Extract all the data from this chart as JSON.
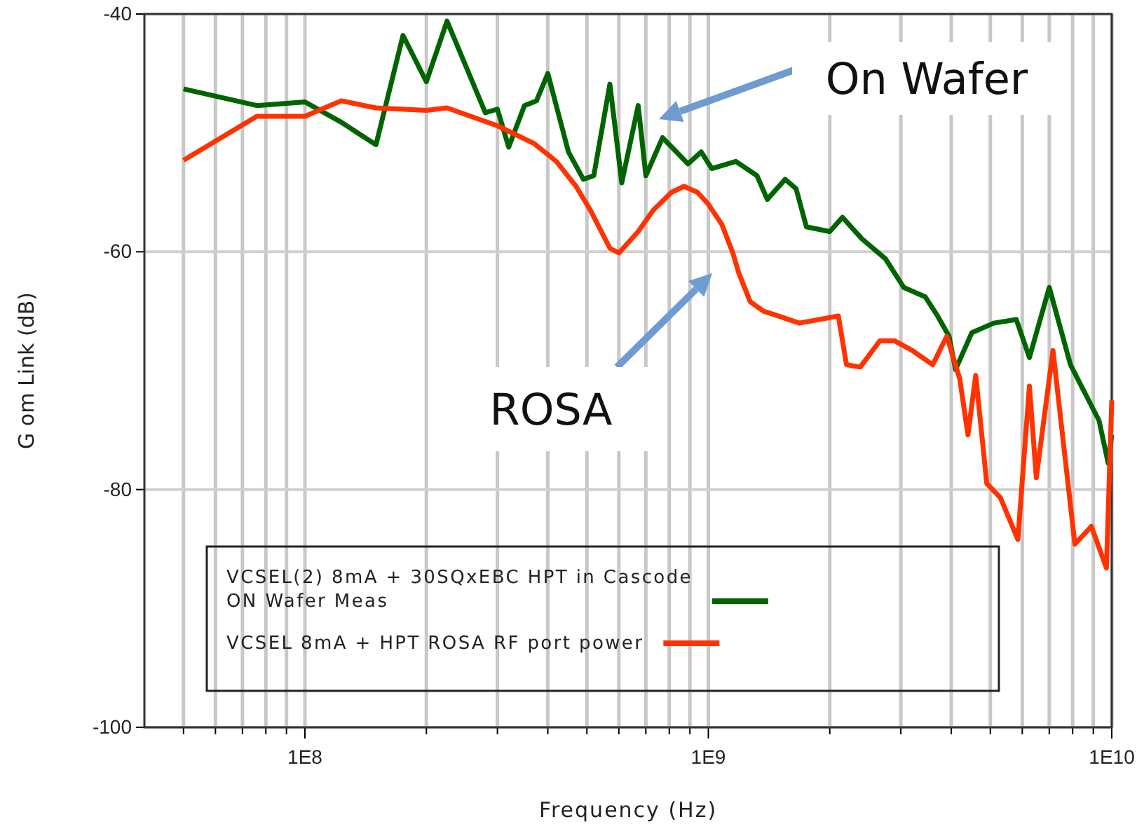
{
  "chart_data": {
    "type": "line",
    "xlabel": "Frequency (Hz)",
    "ylabel": "G om Link (dB)",
    "log": "x",
    "grid": true,
    "legend": "bottom",
    "line_style": "solid",
    "marker": "none",
    "xlim": [
      40000000,
      10000000000
    ],
    "ylim": [
      -100,
      -40
    ],
    "xticks": [
      {
        "value": 50000000,
        "label": null
      },
      {
        "value": 60000000,
        "label": null
      },
      {
        "value": 70000000,
        "label": null
      },
      {
        "value": 80000000,
        "label": null
      },
      {
        "value": 90000000,
        "label": null
      },
      {
        "value": 100000000,
        "label": "1E8"
      },
      {
        "value": 200000000,
        "label": null
      },
      {
        "value": 300000000,
        "label": null
      },
      {
        "value": 400000000,
        "label": null
      },
      {
        "value": 500000000,
        "label": null
      },
      {
        "value": 600000000,
        "label": null
      },
      {
        "value": 700000000,
        "label": null
      },
      {
        "value": 800000000,
        "label": null
      },
      {
        "value": 900000000,
        "label": null
      },
      {
        "value": 1000000000,
        "label": "1E9"
      },
      {
        "value": 2000000000,
        "label": null
      },
      {
        "value": 3000000000,
        "label": null
      },
      {
        "value": 4000000000,
        "label": null
      },
      {
        "value": 5000000000,
        "label": null
      },
      {
        "value": 6000000000,
        "label": null
      },
      {
        "value": 7000000000,
        "label": null
      },
      {
        "value": 8000000000,
        "label": null
      },
      {
        "value": 9000000000,
        "label": null
      },
      {
        "value": 10000000000,
        "label": "1E10"
      }
    ],
    "yticks": [
      -100,
      -80,
      -60,
      -40
    ],
    "annotations": [
      "On Wafer",
      "ROSA"
    ],
    "series": [
      {
        "name": "VCSEL(2) 8mA + 30SQxEBC HPT in Cascode ON Wafer Meas",
        "color": "#006400",
        "x": [
          50000000,
          76000000,
          100000000,
          123000000,
          150000000,
          175000000,
          200000000,
          225000000,
          280000000,
          300000000,
          320000000,
          350000000,
          375000000,
          400000000,
          450000000,
          490000000,
          520000000,
          570000000,
          610000000,
          670000000,
          700000000,
          770000000,
          890000000,
          960000000,
          1020000000,
          1170000000,
          1320000000,
          1400000000,
          1550000000,
          1650000000,
          1750000000,
          2000000000,
          2150000000,
          2400000000,
          2750000000,
          3050000000,
          3450000000,
          3700000000,
          3950000000,
          4100000000,
          4500000000,
          5100000000,
          5800000000,
          6250000000,
          7000000000,
          7900000000,
          9300000000,
          9800000000,
          10000000000
        ],
        "values": [
          -46.3,
          -47.7,
          -47.4,
          -49.1,
          -51.0,
          -41.8,
          -45.7,
          -40.6,
          -48.3,
          -48.0,
          -51.2,
          -47.7,
          -47.3,
          -45.0,
          -51.6,
          -53.9,
          -53.6,
          -45.9,
          -54.2,
          -47.7,
          -53.6,
          -50.4,
          -52.6,
          -51.6,
          -53.0,
          -52.4,
          -53.6,
          -55.6,
          -53.9,
          -54.7,
          -57.9,
          -58.3,
          -57.1,
          -58.9,
          -60.6,
          -63.0,
          -63.8,
          -65.4,
          -67.1,
          -69.9,
          -66.8,
          -66.0,
          -65.7,
          -68.9,
          -63.0,
          -69.5,
          -74.2,
          -77.8,
          -75.4
        ]
      },
      {
        "name": "VCSEL 8mA + HPT ROSA RF port power",
        "color": "#ff3300",
        "x": [
          50000000,
          76000000,
          100000000,
          123000000,
          150000000,
          200000000,
          225000000,
          300000000,
          370000000,
          420000000,
          470000000,
          510000000,
          570000000,
          600000000,
          670000000,
          730000000,
          810000000,
          870000000,
          940000000,
          1000000000,
          1080000000,
          1150000000,
          1190000000,
          1270000000,
          1370000000,
          1490000000,
          1680000000,
          2100000000,
          2200000000,
          2380000000,
          2660000000,
          2900000000,
          3200000000,
          3600000000,
          3900000000,
          4200000000,
          4400000000,
          4600000000,
          4900000000,
          5300000000,
          5850000000,
          6250000000,
          6500000000,
          7150000000,
          8100000000,
          8900000000,
          9700000000,
          10000000000
        ],
        "values": [
          -52.3,
          -48.6,
          -48.6,
          -47.3,
          -47.9,
          -48.1,
          -47.9,
          -49.4,
          -50.9,
          -52.4,
          -54.5,
          -56.5,
          -59.7,
          -60.1,
          -58.3,
          -56.5,
          -55.0,
          -54.5,
          -55.0,
          -56.0,
          -57.7,
          -60.1,
          -61.8,
          -64.2,
          -65.0,
          -65.4,
          -66.0,
          -65.4,
          -69.5,
          -69.7,
          -67.5,
          -67.5,
          -68.3,
          -69.5,
          -67.1,
          -70.7,
          -75.4,
          -70.4,
          -79.5,
          -80.7,
          -84.2,
          -71.3,
          -79.0,
          -68.3,
          -84.6,
          -83.1,
          -86.6,
          -72.5
        ]
      }
    ]
  }
}
